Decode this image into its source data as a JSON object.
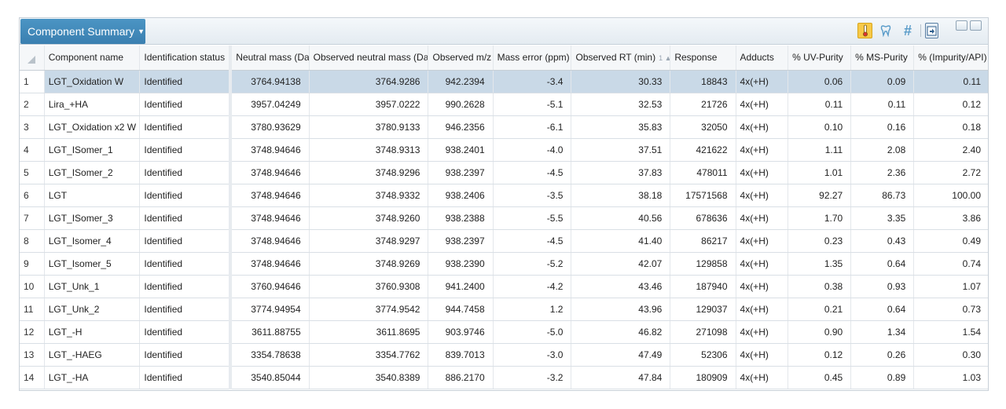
{
  "panel": {
    "title": "Component Summary",
    "toolbar_icons": [
      "thermometer-icon",
      "tooth-icon",
      "hash-icon",
      "export-icon"
    ],
    "window_controls": [
      "minimize-icon",
      "maximize-icon"
    ]
  },
  "table": {
    "columns": [
      "",
      "Component name",
      "Identification status",
      "Neutral mass (Da)",
      "Observed neutral mass (Da)",
      "Observed m/z",
      "Mass error (ppm)",
      "Observed RT (min)",
      "Response",
      "Adducts",
      "% UV-Purity",
      "% MS-Purity",
      "% (Impurity/API)"
    ],
    "sort_indicator": "1 ▲",
    "sorted_column": "Observed RT (min)",
    "selected_row": 1,
    "rows": [
      {
        "idx": "1",
        "name": "LGT_Oxidation W",
        "status": "Identified",
        "neutral_mass": "3764.94138",
        "obs_neutral_mass": "3764.9286",
        "obs_mz": "942.2394",
        "mass_error": "-3.4",
        "rt": "30.33",
        "response": "18843",
        "adducts": "4x(+H)",
        "uv": "0.06",
        "ms": "0.09",
        "impurity": "0.11"
      },
      {
        "idx": "2",
        "name": "Lira_+HA",
        "status": "Identified",
        "neutral_mass": "3957.04249",
        "obs_neutral_mass": "3957.0222",
        "obs_mz": "990.2628",
        "mass_error": "-5.1",
        "rt": "32.53",
        "response": "21726",
        "adducts": "4x(+H)",
        "uv": "0.11",
        "ms": "0.11",
        "impurity": "0.12"
      },
      {
        "idx": "3",
        "name": "LGT_Oxidation x2 W",
        "status": "Identified",
        "neutral_mass": "3780.93629",
        "obs_neutral_mass": "3780.9133",
        "obs_mz": "946.2356",
        "mass_error": "-6.1",
        "rt": "35.83",
        "response": "32050",
        "adducts": "4x(+H)",
        "uv": "0.10",
        "ms": "0.16",
        "impurity": "0.18"
      },
      {
        "idx": "4",
        "name": "LGT_ISomer_1",
        "status": "Identified",
        "neutral_mass": "3748.94646",
        "obs_neutral_mass": "3748.9313",
        "obs_mz": "938.2401",
        "mass_error": "-4.0",
        "rt": "37.51",
        "response": "421622",
        "adducts": "4x(+H)",
        "uv": "1.11",
        "ms": "2.08",
        "impurity": "2.40"
      },
      {
        "idx": "5",
        "name": "LGT_ISomer_2",
        "status": "Identified",
        "neutral_mass": "3748.94646",
        "obs_neutral_mass": "3748.9296",
        "obs_mz": "938.2397",
        "mass_error": "-4.5",
        "rt": "37.83",
        "response": "478011",
        "adducts": "4x(+H)",
        "uv": "1.01",
        "ms": "2.36",
        "impurity": "2.72"
      },
      {
        "idx": "6",
        "name": "LGT",
        "status": "Identified",
        "neutral_mass": "3748.94646",
        "obs_neutral_mass": "3748.9332",
        "obs_mz": "938.2406",
        "mass_error": "-3.5",
        "rt": "38.18",
        "response": "17571568",
        "adducts": "4x(+H)",
        "uv": "92.27",
        "ms": "86.73",
        "impurity": "100.00"
      },
      {
        "idx": "7",
        "name": "LGT_ISomer_3",
        "status": "Identified",
        "neutral_mass": "3748.94646",
        "obs_neutral_mass": "3748.9260",
        "obs_mz": "938.2388",
        "mass_error": "-5.5",
        "rt": "40.56",
        "response": "678636",
        "adducts": "4x(+H)",
        "uv": "1.70",
        "ms": "3.35",
        "impurity": "3.86"
      },
      {
        "idx": "8",
        "name": "LGT_Isomer_4",
        "status": "Identified",
        "neutral_mass": "3748.94646",
        "obs_neutral_mass": "3748.9297",
        "obs_mz": "938.2397",
        "mass_error": "-4.5",
        "rt": "41.40",
        "response": "86217",
        "adducts": "4x(+H)",
        "uv": "0.23",
        "ms": "0.43",
        "impurity": "0.49"
      },
      {
        "idx": "9",
        "name": "LGT_Isomer_5",
        "status": "Identified",
        "neutral_mass": "3748.94646",
        "obs_neutral_mass": "3748.9269",
        "obs_mz": "938.2390",
        "mass_error": "-5.2",
        "rt": "42.07",
        "response": "129858",
        "adducts": "4x(+H)",
        "uv": "1.35",
        "ms": "0.64",
        "impurity": "0.74"
      },
      {
        "idx": "10",
        "name": "LGT_Unk_1",
        "status": "Identified",
        "neutral_mass": "3760.94646",
        "obs_neutral_mass": "3760.9308",
        "obs_mz": "941.2400",
        "mass_error": "-4.2",
        "rt": "43.46",
        "response": "187940",
        "adducts": "4x(+H)",
        "uv": "0.38",
        "ms": "0.93",
        "impurity": "1.07"
      },
      {
        "idx": "11",
        "name": "LGT_Unk_2",
        "status": "Identified",
        "neutral_mass": "3774.94954",
        "obs_neutral_mass": "3774.9542",
        "obs_mz": "944.7458",
        "mass_error": "1.2",
        "rt": "43.96",
        "response": "129037",
        "adducts": "4x(+H)",
        "uv": "0.21",
        "ms": "0.64",
        "impurity": "0.73"
      },
      {
        "idx": "12",
        "name": "LGT_-H",
        "status": "Identified",
        "neutral_mass": "3611.88755",
        "obs_neutral_mass": "3611.8695",
        "obs_mz": "903.9746",
        "mass_error": "-5.0",
        "rt": "46.82",
        "response": "271098",
        "adducts": "4x(+H)",
        "uv": "0.90",
        "ms": "1.34",
        "impurity": "1.54"
      },
      {
        "idx": "13",
        "name": "LGT_-HAEG",
        "status": "Identified",
        "neutral_mass": "3354.78638",
        "obs_neutral_mass": "3354.7762",
        "obs_mz": "839.7013",
        "mass_error": "-3.0",
        "rt": "47.49",
        "response": "52306",
        "adducts": "4x(+H)",
        "uv": "0.12",
        "ms": "0.26",
        "impurity": "0.30"
      },
      {
        "idx": "14",
        "name": "LGT_-HA",
        "status": "Identified",
        "neutral_mass": "3540.85044",
        "obs_neutral_mass": "3540.8389",
        "obs_mz": "886.2170",
        "mass_error": "-3.2",
        "rt": "47.84",
        "response": "180909",
        "adducts": "4x(+H)",
        "uv": "0.45",
        "ms": "0.89",
        "impurity": "1.03"
      }
    ]
  }
}
